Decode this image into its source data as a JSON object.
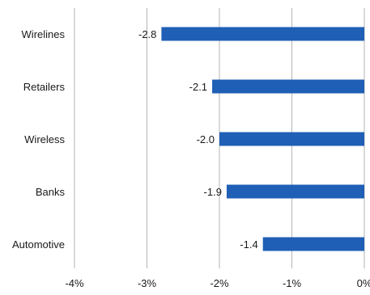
{
  "chart_data": {
    "type": "bar",
    "orientation": "horizontal",
    "categories": [
      "Wirelines",
      "Retailers",
      "Wireless",
      "Banks",
      "Automotive"
    ],
    "values": [
      -2.8,
      -2.1,
      -2.0,
      -1.9,
      -1.4
    ],
    "value_labels": [
      "-2.8",
      "-2.1",
      "-2.0",
      "-1.9",
      "-1.4"
    ],
    "xlim": [
      -4,
      0
    ],
    "x_ticks": [
      -4,
      -3,
      -2,
      -1,
      0
    ],
    "x_tick_labels": [
      "-4%",
      "-3%",
      "-2%",
      "-1%",
      "0%"
    ],
    "grid": "vertical",
    "bar_color": "#1f5fb5",
    "grid_color": "#b5b5b5",
    "title": "",
    "xlabel": "",
    "ylabel": ""
  }
}
